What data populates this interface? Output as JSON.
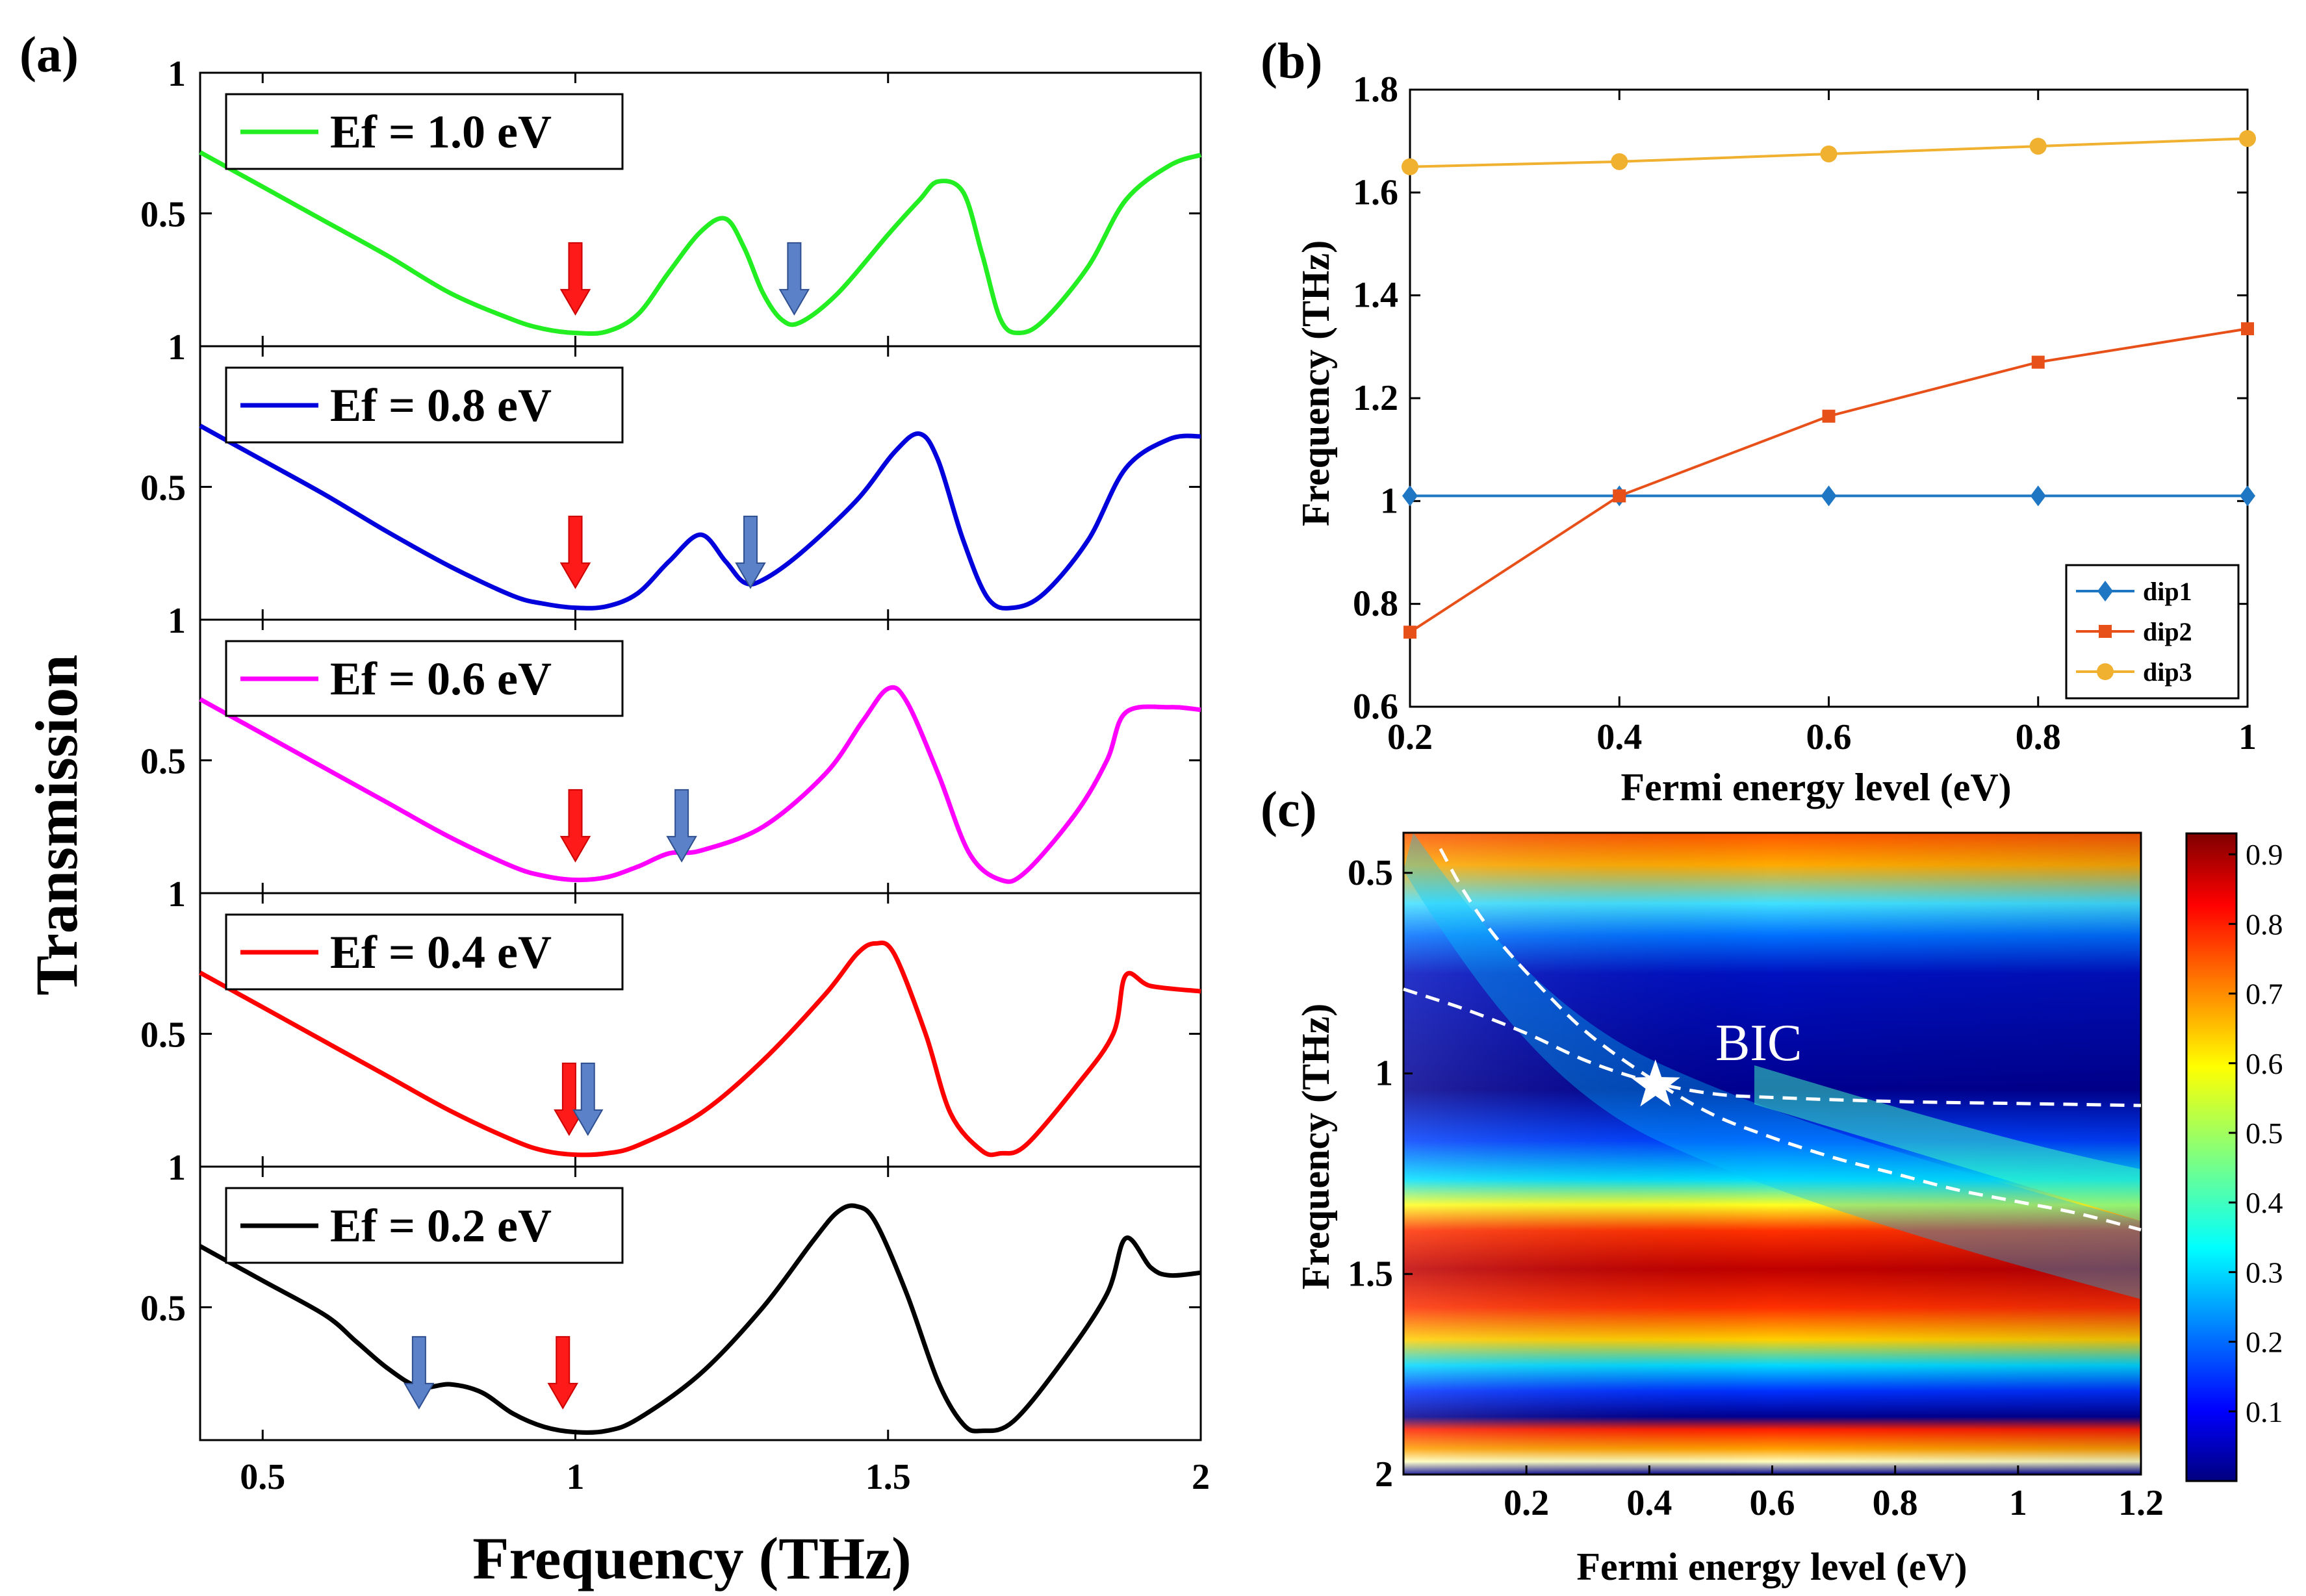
{
  "chart_data": [
    {
      "panel": "(a)",
      "type": "line",
      "xlabel": "Frequency (THz)",
      "ylabel": "Transmission",
      "xlim": [
        0.4,
        2.0
      ],
      "ylim": [
        0,
        1
      ],
      "xticks": [
        "0.5",
        "1",
        "1.5",
        "2"
      ],
      "yticks": [
        "0.5",
        "1"
      ],
      "series": [
        {
          "name": "Ef = 1.0 eV",
          "color": "#22ee22",
          "points": [
            [
              0.4,
              0.73
            ],
            [
              0.5,
              0.6
            ],
            [
              0.6,
              0.47
            ],
            [
              0.7,
              0.34
            ],
            [
              0.8,
              0.2
            ],
            [
              0.9,
              0.1
            ],
            [
              0.95,
              0.065
            ],
            [
              1.0,
              0.05
            ],
            [
              1.05,
              0.055
            ],
            [
              1.1,
              0.12
            ],
            [
              1.15,
              0.28
            ],
            [
              1.2,
              0.43
            ],
            [
              1.24,
              0.48
            ],
            [
              1.27,
              0.37
            ],
            [
              1.3,
              0.2
            ],
            [
              1.33,
              0.1
            ],
            [
              1.36,
              0.09
            ],
            [
              1.42,
              0.2
            ],
            [
              1.5,
              0.42
            ],
            [
              1.55,
              0.55
            ],
            [
              1.58,
              0.62
            ],
            [
              1.62,
              0.58
            ],
            [
              1.65,
              0.35
            ],
            [
              1.68,
              0.1
            ],
            [
              1.71,
              0.05
            ],
            [
              1.75,
              0.1
            ],
            [
              1.82,
              0.3
            ],
            [
              1.88,
              0.55
            ],
            [
              1.95,
              0.68
            ],
            [
              2.0,
              0.72
            ]
          ],
          "arrows": [
            {
              "color": "red",
              "x": 1.0
            },
            {
              "color": "blue",
              "x": 1.35
            }
          ]
        },
        {
          "name": "Ef = 0.8 eV",
          "color": "#0000dd",
          "points": [
            [
              0.4,
              0.73
            ],
            [
              0.5,
              0.6
            ],
            [
              0.6,
              0.47
            ],
            [
              0.7,
              0.33
            ],
            [
              0.8,
              0.2
            ],
            [
              0.9,
              0.09
            ],
            [
              0.95,
              0.06
            ],
            [
              1.0,
              0.045
            ],
            [
              1.05,
              0.05
            ],
            [
              1.1,
              0.1
            ],
            [
              1.15,
              0.22
            ],
            [
              1.2,
              0.32
            ],
            [
              1.24,
              0.22
            ],
            [
              1.27,
              0.14
            ],
            [
              1.3,
              0.15
            ],
            [
              1.36,
              0.25
            ],
            [
              1.45,
              0.45
            ],
            [
              1.51,
              0.63
            ],
            [
              1.55,
              0.7
            ],
            [
              1.58,
              0.6
            ],
            [
              1.62,
              0.3
            ],
            [
              1.66,
              0.08
            ],
            [
              1.7,
              0.045
            ],
            [
              1.75,
              0.1
            ],
            [
              1.82,
              0.3
            ],
            [
              1.88,
              0.57
            ],
            [
              1.95,
              0.68
            ],
            [
              2.0,
              0.69
            ]
          ],
          "arrows": [
            {
              "color": "red",
              "x": 1.0
            },
            {
              "color": "blue",
              "x": 1.28
            }
          ]
        },
        {
          "name": "Ef = 0.6 eV",
          "color": "#ff00ff",
          "points": [
            [
              0.4,
              0.73
            ],
            [
              0.5,
              0.6
            ],
            [
              0.6,
              0.47
            ],
            [
              0.7,
              0.34
            ],
            [
              0.8,
              0.21
            ],
            [
              0.9,
              0.1
            ],
            [
              0.95,
              0.065
            ],
            [
              1.0,
              0.05
            ],
            [
              1.05,
              0.06
            ],
            [
              1.1,
              0.1
            ],
            [
              1.15,
              0.15
            ],
            [
              1.2,
              0.16
            ],
            [
              1.3,
              0.25
            ],
            [
              1.4,
              0.45
            ],
            [
              1.46,
              0.65
            ],
            [
              1.5,
              0.77
            ],
            [
              1.53,
              0.72
            ],
            [
              1.58,
              0.45
            ],
            [
              1.63,
              0.15
            ],
            [
              1.68,
              0.05
            ],
            [
              1.72,
              0.08
            ],
            [
              1.8,
              0.3
            ],
            [
              1.85,
              0.5
            ],
            [
              1.88,
              0.68
            ],
            [
              1.95,
              0.7
            ],
            [
              2.0,
              0.69
            ]
          ],
          "arrows": [
            {
              "color": "red",
              "x": 1.0
            },
            {
              "color": "blue",
              "x": 1.17
            }
          ]
        },
        {
          "name": "Ef = 0.4 eV",
          "color": "#ff0000",
          "points": [
            [
              0.4,
              0.73
            ],
            [
              0.5,
              0.6
            ],
            [
              0.6,
              0.47
            ],
            [
              0.7,
              0.34
            ],
            [
              0.8,
              0.21
            ],
            [
              0.9,
              0.1
            ],
            [
              0.95,
              0.06
            ],
            [
              1.0,
              0.045
            ],
            [
              1.05,
              0.05
            ],
            [
              1.1,
              0.08
            ],
            [
              1.2,
              0.2
            ],
            [
              1.3,
              0.4
            ],
            [
              1.4,
              0.65
            ],
            [
              1.45,
              0.8
            ],
            [
              1.48,
              0.84
            ],
            [
              1.51,
              0.8
            ],
            [
              1.56,
              0.5
            ],
            [
              1.6,
              0.2
            ],
            [
              1.65,
              0.06
            ],
            [
              1.68,
              0.05
            ],
            [
              1.72,
              0.08
            ],
            [
              1.8,
              0.3
            ],
            [
              1.86,
              0.5
            ],
            [
              1.88,
              0.72
            ],
            [
              1.92,
              0.68
            ],
            [
              2.0,
              0.66
            ]
          ],
          "arrows": [
            {
              "color": "red",
              "x": 0.99
            },
            {
              "color": "blue",
              "x": 1.02
            }
          ]
        },
        {
          "name": "Ef = 0.2 eV",
          "color": "#000000",
          "points": [
            [
              0.4,
              0.73
            ],
            [
              0.5,
              0.6
            ],
            [
              0.6,
              0.47
            ],
            [
              0.65,
              0.37
            ],
            [
              0.7,
              0.27
            ],
            [
              0.75,
              0.2
            ],
            [
              0.8,
              0.21
            ],
            [
              0.85,
              0.18
            ],
            [
              0.9,
              0.1
            ],
            [
              0.95,
              0.05
            ],
            [
              1.0,
              0.03
            ],
            [
              1.05,
              0.035
            ],
            [
              1.1,
              0.08
            ],
            [
              1.2,
              0.25
            ],
            [
              1.3,
              0.5
            ],
            [
              1.38,
              0.75
            ],
            [
              1.42,
              0.86
            ],
            [
              1.45,
              0.88
            ],
            [
              1.48,
              0.82
            ],
            [
              1.53,
              0.55
            ],
            [
              1.58,
              0.22
            ],
            [
              1.62,
              0.06
            ],
            [
              1.65,
              0.035
            ],
            [
              1.7,
              0.07
            ],
            [
              1.78,
              0.3
            ],
            [
              1.85,
              0.55
            ],
            [
              1.88,
              0.76
            ],
            [
              1.92,
              0.65
            ],
            [
              1.95,
              0.62
            ],
            [
              2.0,
              0.63
            ]
          ],
          "arrows": [
            {
              "color": "blue",
              "x": 0.75
            },
            {
              "color": "red",
              "x": 0.98
            }
          ]
        }
      ]
    },
    {
      "panel": "(b)",
      "type": "line",
      "xlabel": "Fermi energy level (eV)",
      "ylabel": "Frequency (THz)",
      "x": [
        0.2,
        0.4,
        0.6,
        0.8,
        1.0
      ],
      "xlim": [
        0.2,
        1.0
      ],
      "ylim": [
        0.6,
        1.8
      ],
      "xticks": [
        "0.2",
        "0.4",
        "0.6",
        "0.8",
        "1"
      ],
      "yticks": [
        "0.6",
        "0.8",
        "1",
        "1.2",
        "1.4",
        "1.6",
        "1.8"
      ],
      "legend_position": "bottom-right",
      "series": [
        {
          "name": "dip1",
          "color": "#1f77c4",
          "marker": "diamond",
          "values": [
            1.01,
            1.01,
            1.01,
            1.01,
            1.01
          ]
        },
        {
          "name": "dip2",
          "color": "#e8501a",
          "marker": "square",
          "values": [
            0.745,
            1.01,
            1.165,
            1.27,
            1.335
          ]
        },
        {
          "name": "dip3",
          "color": "#f0b030",
          "marker": "circle",
          "values": [
            1.65,
            1.66,
            1.675,
            1.69,
            1.705
          ]
        }
      ]
    },
    {
      "panel": "(c)",
      "type": "heatmap",
      "xlabel": "Fermi energy level (eV)",
      "ylabel": "Frequency (THz)",
      "xlim": [
        0.0,
        1.2
      ],
      "ylim": [
        0.4,
        2.0
      ],
      "xticks": [
        "0.2",
        "0.4",
        "0.6",
        "0.8",
        "1",
        "1.2"
      ],
      "yticks": [
        "0.5",
        "1",
        "1.5",
        "2"
      ],
      "colorbar_ticks": [
        "0.1",
        "0.2",
        "0.3",
        "0.4",
        "0.5",
        "0.6",
        "0.7",
        "0.8",
        "0.9"
      ],
      "colorbar_range": [
        0.0,
        0.93
      ],
      "annotation": "BIC",
      "bic_point": [
        0.41,
        1.03
      ],
      "dashed_curve_1": [
        [
          0.06,
          0.44
        ],
        [
          0.1,
          0.55
        ],
        [
          0.15,
          0.66
        ],
        [
          0.22,
          0.78
        ],
        [
          0.3,
          0.9
        ],
        [
          0.4,
          1.01
        ],
        [
          0.5,
          1.1
        ],
        [
          0.6,
          1.16
        ],
        [
          0.7,
          1.21
        ],
        [
          0.8,
          1.25
        ],
        [
          0.9,
          1.29
        ],
        [
          1.0,
          1.32
        ],
        [
          1.1,
          1.35
        ],
        [
          1.2,
          1.39
        ]
      ],
      "dashed_curve_2": [
        [
          0.0,
          0.79
        ],
        [
          0.1,
          0.84
        ],
        [
          0.2,
          0.9
        ],
        [
          0.3,
          0.97
        ],
        [
          0.4,
          1.02
        ],
        [
          0.5,
          1.05
        ],
        [
          0.6,
          1.06
        ],
        [
          0.8,
          1.07
        ],
        [
          1.0,
          1.075
        ],
        [
          1.2,
          1.08
        ]
      ]
    }
  ]
}
